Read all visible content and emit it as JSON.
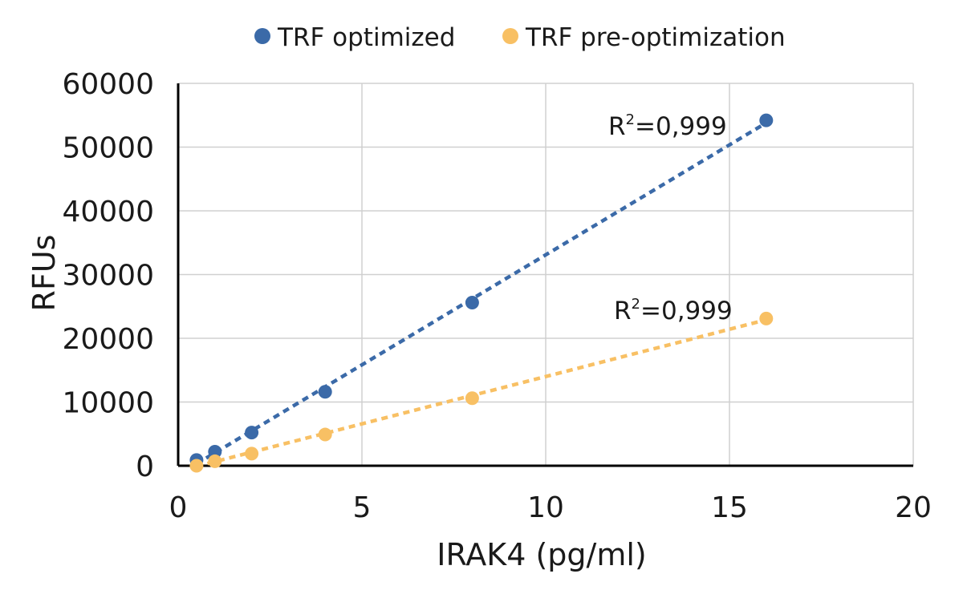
{
  "chart_data": {
    "type": "scatter",
    "title": "",
    "xlabel": "IRAK4 (pg/ml)",
    "ylabel": "RFUs",
    "xlim": [
      0,
      20
    ],
    "ylim": [
      0,
      60000
    ],
    "x_ticks": [
      0,
      5,
      10,
      15,
      20
    ],
    "y_ticks": [
      0,
      10000,
      20000,
      30000,
      40000,
      50000,
      60000
    ],
    "x_tick_labels": [
      "0",
      "5",
      "10",
      "15",
      "20"
    ],
    "y_tick_labels": [
      "0",
      "10000",
      "20000",
      "30000",
      "40000",
      "50000",
      "60000"
    ],
    "grid": true,
    "legend_position": "top-center",
    "series": [
      {
        "name": "TRF optimized",
        "color": "#3b6aa8",
        "x": [
          0.5,
          1,
          2,
          4,
          8,
          16
        ],
        "y": [
          900,
          2200,
          5200,
          11600,
          25600,
          54200
        ],
        "trendline": {
          "type": "linear",
          "from": [
            0.5,
            300
          ],
          "to": [
            16,
            53800
          ]
        },
        "r2_label": {
          "prefix": "R",
          "sup": "2",
          "value": "=0,999"
        }
      },
      {
        "name": "TRF pre-optimization",
        "color": "#f8c064",
        "x": [
          0.5,
          1,
          2,
          4,
          8,
          16
        ],
        "y": [
          0,
          700,
          1900,
          4900,
          10600,
          23100
        ],
        "trendline": {
          "type": "linear",
          "from": [
            0.5,
            -100
          ],
          "to": [
            16,
            22900
          ]
        },
        "r2_label": {
          "prefix": "R",
          "sup": "2",
          "value": "=0,999"
        }
      }
    ]
  }
}
